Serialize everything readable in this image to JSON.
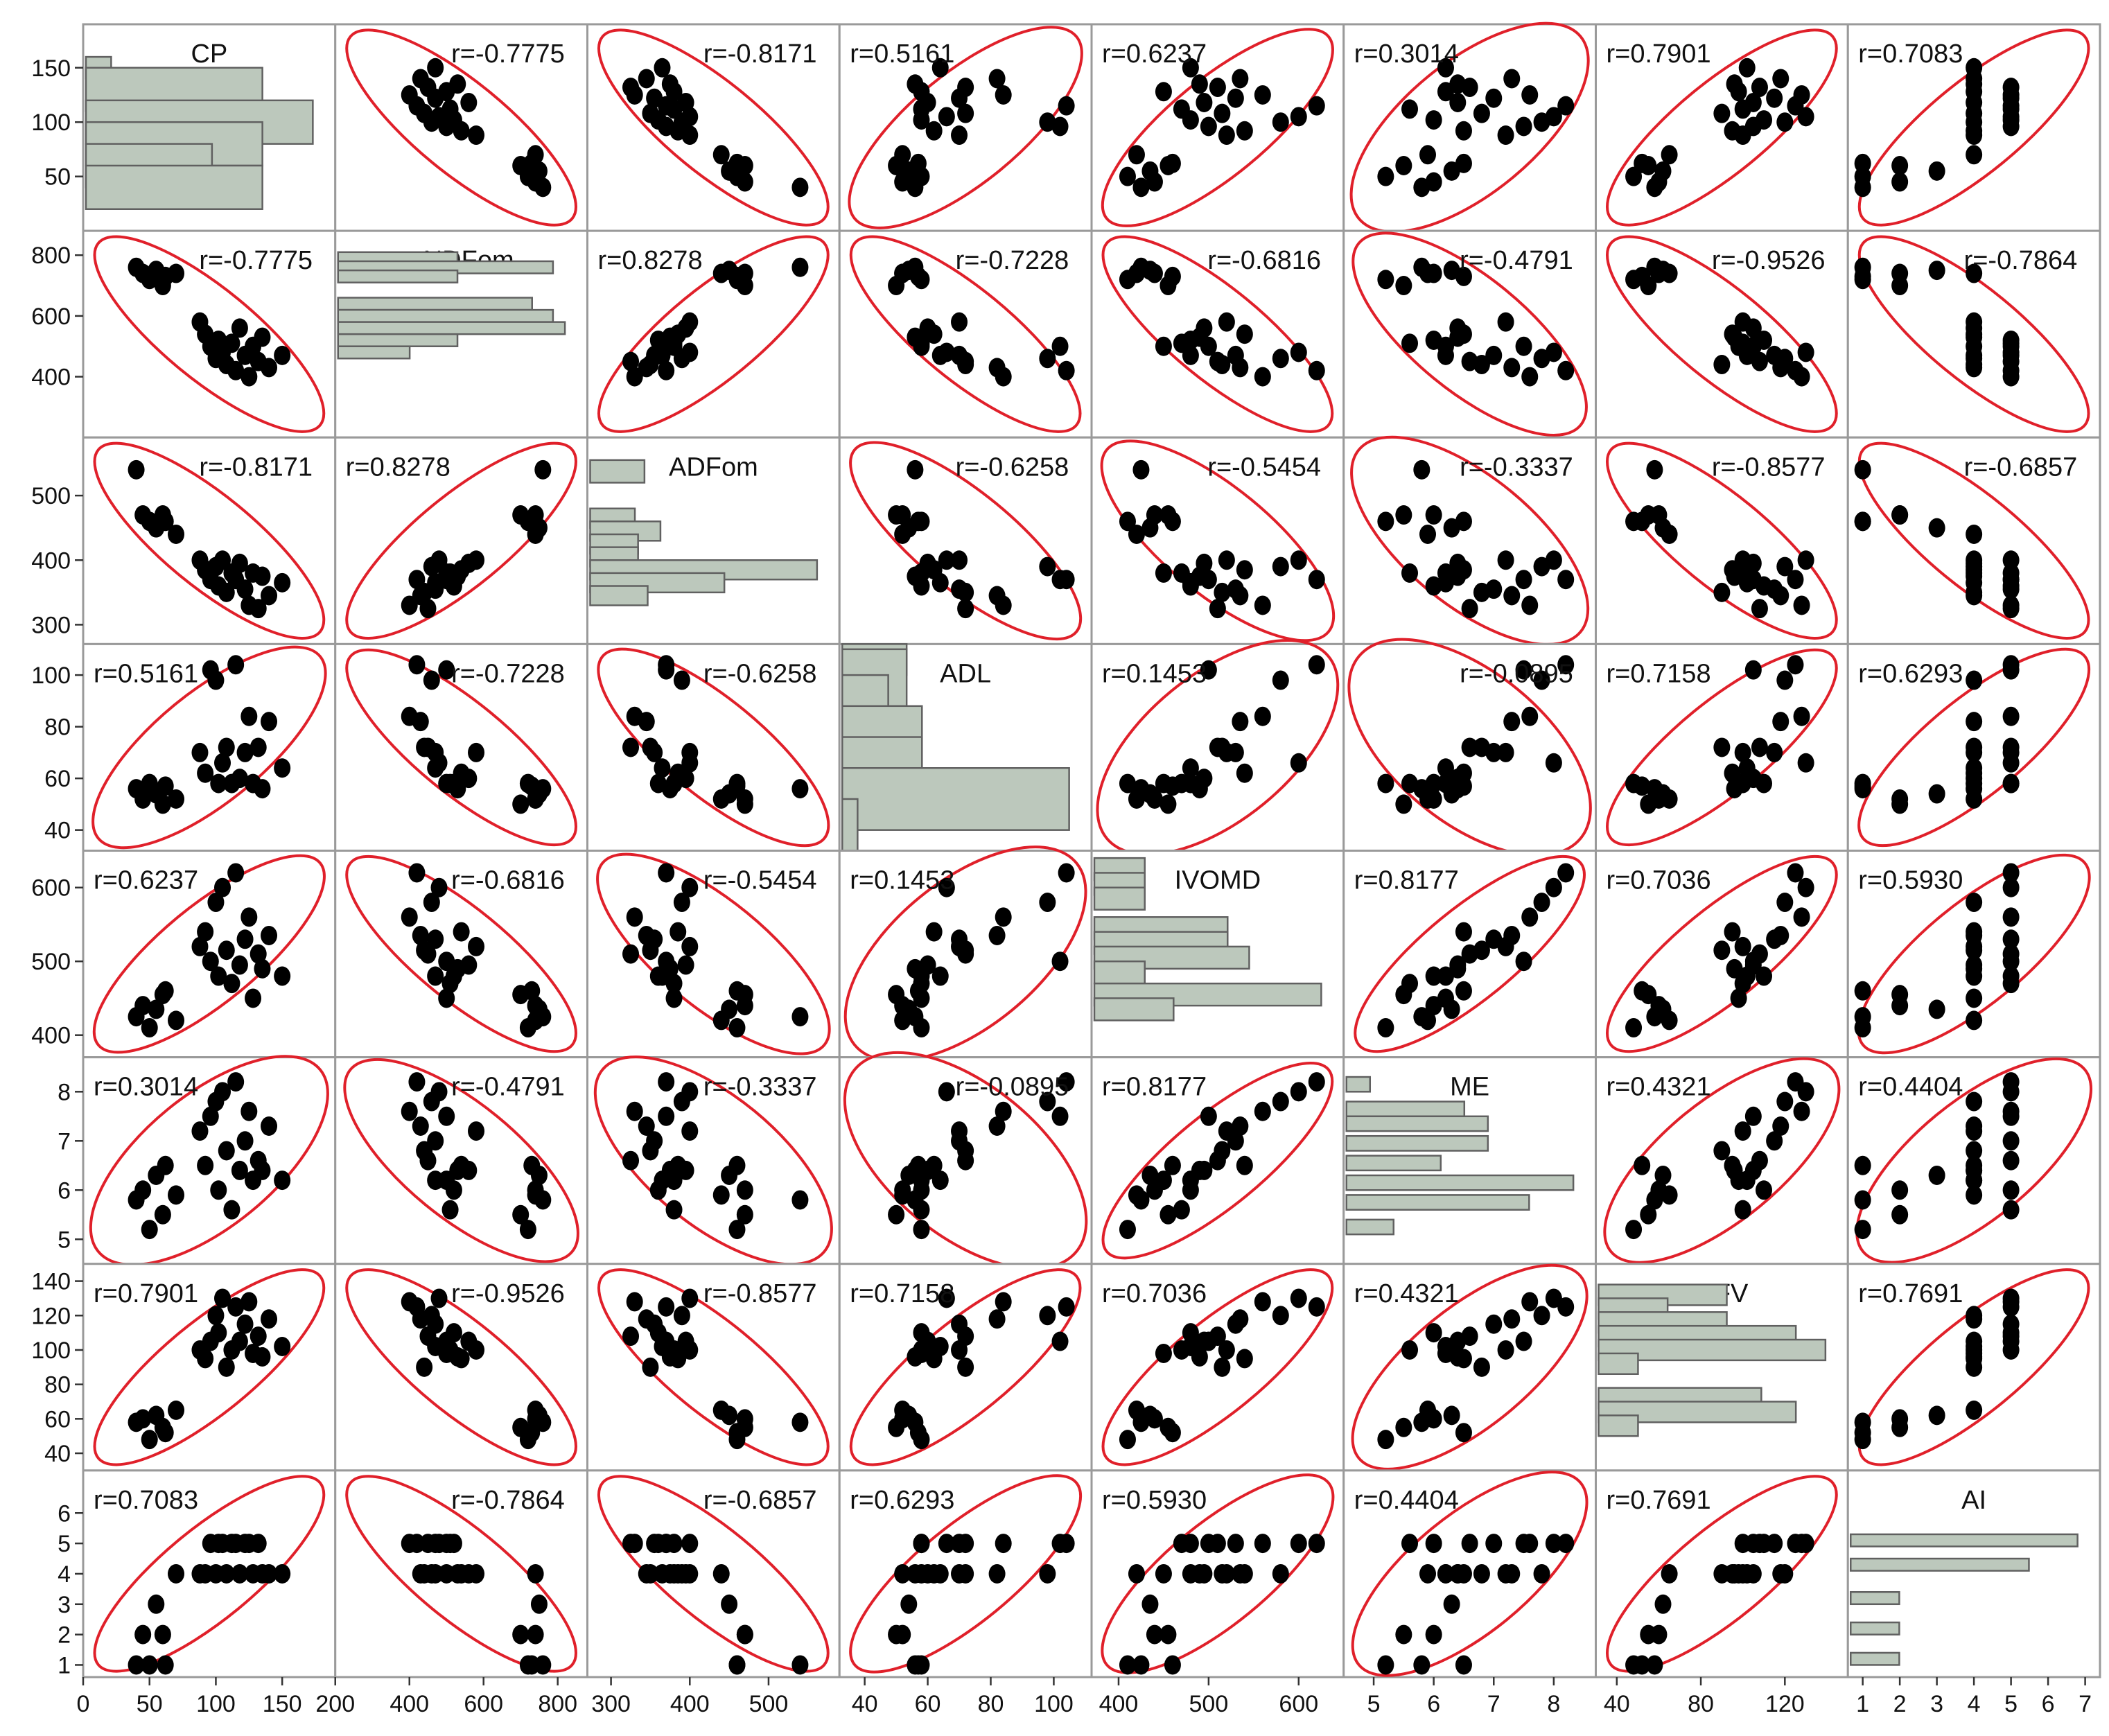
{
  "chart_data": {
    "type": "scatter",
    "variables": [
      {
        "name": "CP",
        "range": [
          0,
          190
        ],
        "ticks": [
          0,
          50,
          100,
          150
        ],
        "yticks": [
          0,
          50,
          100,
          150
        ],
        "hist": [
          [
            140,
            150,
            160,
            20
          ],
          [
            110,
            140,
            150,
            140
          ],
          [
            80,
            110,
            120,
            180
          ],
          [
            60,
            80,
            100,
            140
          ],
          [
            40,
            60,
            80,
            100
          ],
          [
            20,
            40,
            60,
            140
          ]
        ]
      },
      {
        "name": "aNDFom",
        "range": [
          200,
          880
        ],
        "ticks": [
          200,
          400,
          600,
          800
        ],
        "yticks": [
          200,
          400,
          600,
          800
        ],
        "hist": [
          [
            770,
            800,
            810,
            400
          ],
          [
            740,
            770,
            780,
            720
          ],
          [
            710,
            740,
            750,
            400
          ],
          [
            620,
            650,
            660,
            650
          ],
          [
            580,
            610,
            620,
            720
          ],
          [
            540,
            570,
            580,
            760
          ],
          [
            500,
            530,
            540,
            400
          ],
          [
            460,
            490,
            500,
            240
          ]
        ]
      },
      {
        "name": "ADFom",
        "range": [
          270,
          590
        ],
        "ticks": [
          300,
          400,
          500
        ],
        "yticks": [
          300,
          400,
          500
        ],
        "hist": [
          [
            520,
            545,
            555,
            170
          ],
          [
            450,
            470,
            480,
            140
          ],
          [
            430,
            450,
            460,
            220
          ],
          [
            410,
            430,
            440,
            150
          ],
          [
            390,
            410,
            420,
            150
          ],
          [
            370,
            390,
            400,
            710
          ],
          [
            350,
            370,
            380,
            420
          ],
          [
            330,
            350,
            360,
            180
          ]
        ]
      },
      {
        "name": "ADL",
        "range": [
          32,
          112
        ],
        "ticks": [
          40,
          60,
          80,
          100
        ],
        "yticks": [
          40,
          60,
          80,
          100
        ],
        "hist": [
          [
            100,
            110,
            112,
            420
          ],
          [
            88,
            100,
            110,
            420
          ],
          [
            76,
            88,
            100,
            300
          ],
          [
            64,
            76,
            88,
            520
          ],
          [
            52,
            64,
            76,
            520
          ],
          [
            40,
            52,
            64,
            1480
          ],
          [
            32,
            40,
            52,
            100
          ]
        ]
      },
      {
        "name": "IVOMD",
        "range": [
          370,
          650
        ],
        "ticks": [
          400,
          500,
          600
        ],
        "yticks": [
          400,
          500,
          600
        ],
        "hist": [
          [
            610,
            630,
            640,
            280
          ],
          [
            590,
            610,
            620,
            280
          ],
          [
            570,
            590,
            600,
            280
          ],
          [
            530,
            550,
            560,
            740
          ],
          [
            510,
            530,
            540,
            740
          ],
          [
            490,
            510,
            520,
            860
          ],
          [
            470,
            490,
            500,
            280
          ],
          [
            440,
            460,
            470,
            1260
          ],
          [
            420,
            440,
            450,
            440
          ]
        ]
      },
      {
        "name": "ME",
        "range": [
          4.5,
          8.7
        ],
        "ticks": [
          5,
          6,
          7,
          8
        ],
        "yticks": [
          5,
          6,
          7,
          8
        ],
        "hist": [
          [
            8.0,
            8.2,
            8.3,
            160
          ],
          [
            7.5,
            7.7,
            7.8,
            800
          ],
          [
            7.2,
            7.4,
            7.5,
            960
          ],
          [
            6.8,
            7.0,
            7.1,
            960
          ],
          [
            6.4,
            6.6,
            6.7,
            640
          ],
          [
            6.0,
            6.2,
            6.3,
            1540
          ],
          [
            5.6,
            5.8,
            5.9,
            1240
          ],
          [
            5.1,
            5.3,
            5.4,
            320
          ]
        ]
      },
      {
        "name": "RFV",
        "range": [
          30,
          150
        ],
        "ticks": [
          40,
          80,
          120
        ],
        "yticks": [
          40,
          60,
          80,
          100,
          120,
          140
        ],
        "hist": [
          [
            126,
            134,
            138,
            260
          ],
          [
            118,
            126,
            130,
            140
          ],
          [
            110,
            118,
            122,
            260
          ],
          [
            102,
            110,
            114,
            400
          ],
          [
            94,
            102,
            106,
            460
          ],
          [
            86,
            94,
            98,
            80
          ],
          [
            66,
            74,
            78,
            330
          ],
          [
            58,
            66,
            70,
            400
          ],
          [
            50,
            58,
            62,
            80
          ]
        ]
      },
      {
        "name": "AI",
        "range": [
          0.6,
          7.4
        ],
        "ticks": [
          1,
          2,
          3,
          4,
          5,
          6,
          7
        ],
        "yticks": [
          1,
          2,
          3,
          4,
          5,
          6
        ],
        "hist": [
          [
            4.9,
            5.1,
            5.3,
            7
          ],
          [
            4.1,
            4.3,
            4.5,
            5.5
          ],
          [
            3.0,
            3.2,
            3.4,
            1.5
          ],
          [
            2.0,
            2.2,
            2.4,
            1.5
          ],
          [
            1.0,
            1.2,
            1.4,
            1.5
          ]
        ]
      }
    ],
    "correlations": [
      [
        null,
        "-0.7775",
        "-0.8171",
        "0.5161",
        "0.6237",
        "0.3014",
        "0.7901",
        "0.7083"
      ],
      [
        "-0.7775",
        null,
        "0.8278",
        "-0.7228",
        "-0.6816",
        "-0.4791",
        "-0.9526",
        "-0.7864"
      ],
      [
        "-0.8171",
        "0.8278",
        null,
        "-0.6258",
        "-0.5454",
        "-0.3337",
        "-0.8577",
        "-0.6857"
      ],
      [
        "0.5161",
        "-0.7228",
        "-0.6258",
        null,
        "0.1453",
        "-0.0895",
        "0.7158",
        "0.6293"
      ],
      [
        "0.6237",
        "-0.6816",
        "-0.5454",
        "0.1453",
        null,
        "0.8177",
        "0.7036",
        "0.5930"
      ],
      [
        "0.3014",
        "-0.4791",
        "-0.3337",
        "-0.0895",
        "0.8177",
        null,
        "0.4321",
        "0.4404"
      ],
      [
        "0.7901",
        "-0.9526",
        "-0.8577",
        "0.7158",
        "0.7036",
        "0.4321",
        null,
        "0.7691"
      ],
      [
        "0.7083",
        "-0.7864",
        "-0.6857",
        "0.6293",
        "0.5930",
        "0.4404",
        "0.7691",
        null
      ]
    ],
    "observations": [
      {
        "CP": 40,
        "aNDFom": 760,
        "ADFom": 540,
        "ADL": 56,
        "IVOMD": 425,
        "ME": 5.8,
        "RFV": 58,
        "AI": 1
      },
      {
        "CP": 45,
        "aNDFom": 740,
        "ADFom": 470,
        "ADL": 52,
        "IVOMD": 440,
        "ME": 6.0,
        "RFV": 60,
        "AI": 2
      },
      {
        "CP": 50,
        "aNDFom": 720,
        "ADFom": 460,
        "ADL": 58,
        "IVOMD": 410,
        "ME": 5.2,
        "RFV": 48,
        "AI": 1
      },
      {
        "CP": 55,
        "aNDFom": 750,
        "ADFom": 450,
        "ADL": 54,
        "IVOMD": 435,
        "ME": 6.3,
        "RFV": 62,
        "AI": 3
      },
      {
        "CP": 60,
        "aNDFom": 700,
        "ADFom": 470,
        "ADL": 50,
        "IVOMD": 455,
        "ME": 5.5,
        "RFV": 55,
        "AI": 2
      },
      {
        "CP": 62,
        "aNDFom": 730,
        "ADFom": 460,
        "ADL": 57,
        "IVOMD": 460,
        "ME": 6.5,
        "RFV": 52,
        "AI": 1
      },
      {
        "CP": 70,
        "aNDFom": 740,
        "ADFom": 440,
        "ADL": 52,
        "IVOMD": 420,
        "ME": 5.9,
        "RFV": 65,
        "AI": 4
      },
      {
        "CP": 88,
        "aNDFom": 580,
        "ADFom": 400,
        "ADL": 70,
        "IVOMD": 520,
        "ME": 7.2,
        "RFV": 100,
        "AI": 4
      },
      {
        "CP": 92,
        "aNDFom": 540,
        "ADFom": 385,
        "ADL": 62,
        "IVOMD": 540,
        "ME": 6.5,
        "RFV": 95,
        "AI": 4
      },
      {
        "CP": 96,
        "aNDFom": 500,
        "ADFom": 370,
        "ADL": 102,
        "IVOMD": 500,
        "ME": 7.5,
        "RFV": 105,
        "AI": 5
      },
      {
        "CP": 100,
        "aNDFom": 460,
        "ADFom": 390,
        "ADL": 98,
        "IVOMD": 580,
        "ME": 7.8,
        "RFV": 120,
        "AI": 4
      },
      {
        "CP": 102,
        "aNDFom": 520,
        "ADFom": 360,
        "ADL": 58,
        "IVOMD": 480,
        "ME": 6.0,
        "RFV": 110,
        "AI": 5
      },
      {
        "CP": 105,
        "aNDFom": 480,
        "ADFom": 400,
        "ADL": 66,
        "IVOMD": 600,
        "ME": 8.0,
        "RFV": 130,
        "AI": 5
      },
      {
        "CP": 108,
        "aNDFom": 440,
        "ADFom": 350,
        "ADL": 72,
        "IVOMD": 515,
        "ME": 6.8,
        "RFV": 90,
        "AI": 4
      },
      {
        "CP": 112,
        "aNDFom": 510,
        "ADFom": 380,
        "ADL": 58,
        "IVOMD": 470,
        "ME": 5.6,
        "RFV": 100,
        "AI": 5
      },
      {
        "CP": 115,
        "aNDFom": 420,
        "ADFom": 370,
        "ADL": 104,
        "IVOMD": 620,
        "ME": 8.2,
        "RFV": 125,
        "AI": 5
      },
      {
        "CP": 118,
        "aNDFom": 560,
        "ADFom": 395,
        "ADL": 60,
        "IVOMD": 495,
        "ME": 6.4,
        "RFV": 105,
        "AI": 4
      },
      {
        "CP": 122,
        "aNDFom": 470,
        "ADFom": 355,
        "ADL": 70,
        "IVOMD": 530,
        "ME": 7.0,
        "RFV": 115,
        "AI": 5
      },
      {
        "CP": 125,
        "aNDFom": 400,
        "ADFom": 330,
        "ADL": 84,
        "IVOMD": 560,
        "ME": 7.6,
        "RFV": 128,
        "AI": 5
      },
      {
        "CP": 128,
        "aNDFom": 500,
        "ADFom": 380,
        "ADL": 58,
        "IVOMD": 450,
        "ME": 6.2,
        "RFV": 98,
        "AI": 4
      },
      {
        "CP": 132,
        "aNDFom": 450,
        "ADFom": 325,
        "ADL": 72,
        "IVOMD": 510,
        "ME": 6.6,
        "RFV": 108,
        "AI": 5
      },
      {
        "CP": 135,
        "aNDFom": 530,
        "ADFom": 375,
        "ADL": 56,
        "IVOMD": 490,
        "ME": 6.4,
        "RFV": 96,
        "AI": 4
      },
      {
        "CP": 140,
        "aNDFom": 430,
        "ADFom": 345,
        "ADL": 82,
        "IVOMD": 535,
        "ME": 7.3,
        "RFV": 118,
        "AI": 4
      },
      {
        "CP": 150,
        "aNDFom": 470,
        "ADFom": 365,
        "ADL": 64,
        "IVOMD": 480,
        "ME": 6.2,
        "RFV": 102,
        "AI": 4
      }
    ],
    "colors": {
      "ellipse": "#e0202a",
      "points": "#000000",
      "bars": "#bcc8bc",
      "grid": "#9a9a9a"
    },
    "grid": true
  }
}
